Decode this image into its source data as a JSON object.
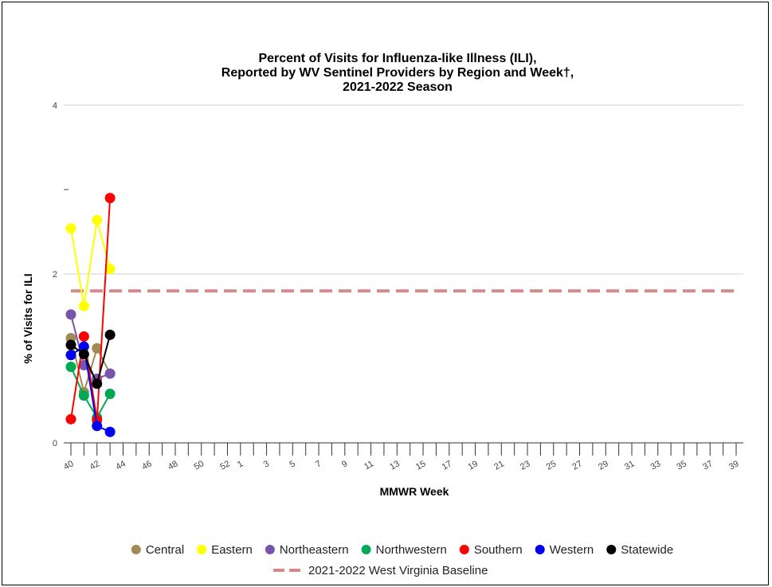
{
  "chart_data": {
    "type": "line",
    "title": [
      "Percent of Visits for Influenza-like Illness (ILI),",
      "Reported by WV Sentinel Providers by Region and Week†,",
      "2021-2022 Season"
    ],
    "xlabel": "MMWR Week",
    "ylabel": "% of Visits for ILI",
    "ylim": [
      0,
      4
    ],
    "y_ticks": [
      "0",
      "2",
      "4"
    ],
    "x_categories": [
      "40",
      "41",
      "42",
      "43",
      "44",
      "45",
      "46",
      "47",
      "48",
      "49",
      "50",
      "51",
      "52",
      "1",
      "2",
      "3",
      "4",
      "5",
      "6",
      "7",
      "8",
      "9",
      "10",
      "11",
      "12",
      "13",
      "14",
      "15",
      "16",
      "17",
      "18",
      "19",
      "20",
      "21",
      "22",
      "23",
      "24",
      "25",
      "26",
      "27",
      "28",
      "29",
      "30",
      "31",
      "32",
      "33",
      "34",
      "35",
      "36",
      "37",
      "38",
      "39"
    ],
    "x_tick_labels": [
      "40",
      "42",
      "44",
      "46",
      "48",
      "50",
      "52",
      "1",
      "3",
      "5",
      "7",
      "9",
      "11",
      "13",
      "15",
      "17",
      "19",
      "21",
      "23",
      "25",
      "27",
      "29",
      "31",
      "33",
      "35",
      "37",
      "39"
    ],
    "baseline": {
      "name": "2021-2022 West Virginia Baseline",
      "value": 1.8,
      "color": "#d48a8a"
    },
    "legend_position": "bottom",
    "series": [
      {
        "name": "Central",
        "color": "#a08a55",
        "values": [
          1.24,
          0.6,
          1.12,
          0.82
        ]
      },
      {
        "name": "Eastern",
        "color": "#ffff00",
        "values": [
          2.54,
          1.62,
          2.64,
          2.06
        ]
      },
      {
        "name": "Northeastern",
        "color": "#7755aa",
        "values": [
          1.52,
          0.92,
          0.76,
          0.82
        ]
      },
      {
        "name": "Northwestern",
        "color": "#00aa55",
        "values": [
          0.9,
          0.56,
          0.3,
          0.58
        ]
      },
      {
        "name": "Southern",
        "color": "#ff0000",
        "values": [
          0.28,
          1.26,
          0.27,
          2.9
        ]
      },
      {
        "name": "Western",
        "color": "#0000ee",
        "values": [
          1.04,
          1.14,
          0.2,
          0.13
        ]
      },
      {
        "name": "Statewide",
        "color": "#000000",
        "values": [
          1.16,
          1.05,
          0.7,
          1.28
        ]
      }
    ]
  }
}
